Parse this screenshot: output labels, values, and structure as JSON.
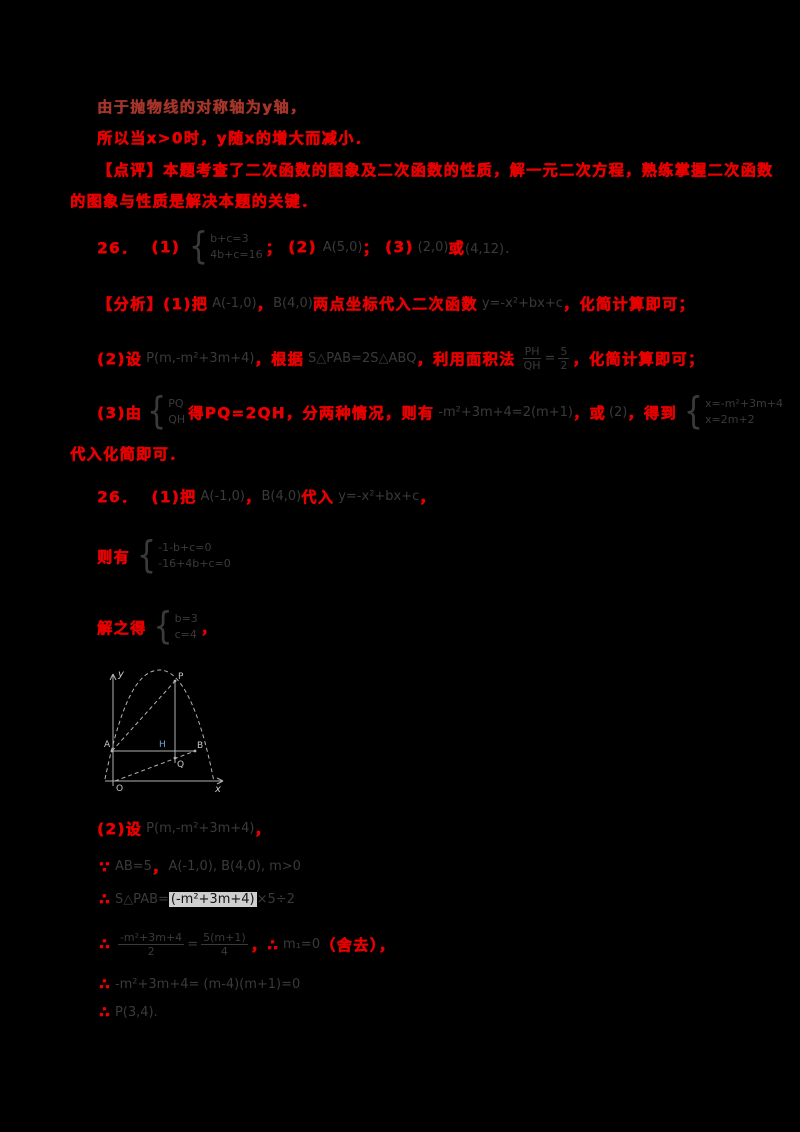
{
  "page": {
    "background": "#000000",
    "accent_red": "#e60000",
    "dark_red": "#a5352a",
    "faint_ink": "#3a3a3a",
    "highlight": "#cfcfcf",
    "figure_stroke": "#b2b2b2",
    "h_label_color": "#6ea3dc"
  },
  "lines": {
    "l1": [
      {
        "t": "由于抛物线的对称轴为y轴，",
        "c": "red2"
      }
    ],
    "l2": [
      {
        "t": "所以当x>0时，y随x的增大而减小．",
        "c": "red"
      }
    ],
    "l3": [
      {
        "t": "【点评】本题考查了二次函数的图象及二次函数的性质，解一元二次方程，熟练掌握二次函数",
        "c": "red"
      }
    ],
    "l4": [
      {
        "t": "的图象与性质是解决本题的关键．",
        "c": "red"
      }
    ],
    "l5": [
      {
        "t": "26．",
        "c": "red"
      },
      {
        "sp": 14
      },
      {
        "t": "(1)",
        "c": "red"
      },
      {
        "sp": 6
      },
      {
        "stack": [
          "b+c=3",
          "4b+c=16"
        ],
        "c": "dark"
      },
      {
        "t": "；",
        "c": "red"
      },
      {
        "sp": 6
      },
      {
        "t": "(2)",
        "c": "red"
      },
      {
        "sp": 6
      },
      {
        "t": "A(5,0)",
        "c": "dark"
      },
      {
        "t": "；",
        "c": "red"
      },
      {
        "sp": 6
      },
      {
        "t": "(3)",
        "c": "red"
      },
      {
        "sp": 4
      },
      {
        "t": "(2,0)",
        "c": "dark"
      },
      {
        "t": "或",
        "c": "red"
      },
      {
        "t": "(4,12)．",
        "c": "dark"
      }
    ],
    "l6": [
      {
        "t": "【分析】(1)把",
        "c": "red"
      },
      {
        "sp": 4
      },
      {
        "t": "A(-1,0)",
        "c": "dark"
      },
      {
        "t": "，",
        "c": "red"
      },
      {
        "t": "B(4,0)",
        "c": "dark"
      },
      {
        "t": "两点坐标代入二次函数",
        "c": "red"
      },
      {
        "sp": 4
      },
      {
        "t": "y=-x²+bx+c",
        "c": "dark"
      },
      {
        "t": "，化简计算即可；",
        "c": "red"
      }
    ],
    "l7": [
      {
        "t": "(2)设",
        "c": "red"
      },
      {
        "sp": 4
      },
      {
        "t": "P(m,-m²+3m+4)",
        "c": "dark"
      },
      {
        "t": "，根据",
        "c": "red"
      },
      {
        "sp": 4
      },
      {
        "t": "S△PAB=2S△ABQ",
        "c": "dark"
      },
      {
        "t": "，利用面积法",
        "c": "red"
      },
      {
        "sp": 4
      },
      {
        "frac": [
          "PH",
          "QH"
        ],
        "c": "dark"
      },
      {
        "t": "=",
        "c": "dark"
      },
      {
        "frac": [
          "5",
          "2"
        ],
        "c": "dark"
      },
      {
        "t": "，化简计算即可；",
        "c": "red"
      }
    ],
    "l8": [
      {
        "t": "(3)由",
        "c": "red"
      },
      {
        "sp": 2
      },
      {
        "stack": [
          "PQ",
          "QH"
        ],
        "c": "dark"
      },
      {
        "t": "得PQ=2QH，分两种情况，则有",
        "c": "red"
      },
      {
        "sp": 4
      },
      {
        "t": "-m²+3m+4=2(m+1)",
        "c": "dark"
      },
      {
        "t": "，或",
        "c": "red"
      },
      {
        "sp": 3
      },
      {
        "t": "(2)",
        "c": "dark"
      },
      {
        "t": "，得到",
        "c": "red"
      },
      {
        "sp": 4
      },
      {
        "stack": [
          "x=-m²+3m+4",
          "x=2m+2"
        ],
        "c": "dark"
      }
    ],
    "l9": [
      {
        "t": "代入化简即可．",
        "c": "red"
      }
    ],
    "l10": [
      {
        "t": "26．",
        "c": "red"
      },
      {
        "sp": 14
      },
      {
        "t": "(1)把",
        "c": "red"
      },
      {
        "sp": 4
      },
      {
        "t": "A(-1,0)",
        "c": "dark"
      },
      {
        "t": "，",
        "c": "red"
      },
      {
        "t": "B(4,0)",
        "c": "dark"
      },
      {
        "t": "代入",
        "c": "red"
      },
      {
        "sp": 4
      },
      {
        "t": "y=-x²+bx+c",
        "c": "dark"
      },
      {
        "t": "，",
        "c": "red"
      }
    ],
    "l11": [
      {
        "t": "则有",
        "c": "red"
      },
      {
        "sp": 4
      },
      {
        "stack": [
          "-1-b+c=0",
          "-16+4b+c=0"
        ],
        "c": "dark"
      }
    ],
    "l12": [
      {
        "t": "解之得",
        "c": "red"
      },
      {
        "sp": 4
      },
      {
        "stack": [
          "b=3",
          "c=4"
        ],
        "c": "dark"
      },
      {
        "t": "，",
        "c": "red"
      }
    ],
    "l14": [
      {
        "t": "(2)设",
        "c": "red"
      },
      {
        "sp": 4
      },
      {
        "t": "P(m,-m²+3m+4)",
        "c": "dark"
      },
      {
        "t": "，",
        "c": "red"
      }
    ],
    "l15": [
      {
        "t": "∵",
        "c": "red"
      },
      {
        "sp": 4
      },
      {
        "t": "AB=5",
        "c": "dark"
      },
      {
        "t": "，",
        "c": "red"
      },
      {
        "t": "A(-1,0), B(4,0), m>0",
        "c": "dark"
      }
    ],
    "l16": [
      {
        "t": "∴",
        "c": "red"
      },
      {
        "sp": 4
      },
      {
        "t": "S△PAB=",
        "c": "dark"
      },
      {
        "t": "(-m²+3m+4)",
        "c": "hl"
      },
      {
        "t": "×5÷2",
        "c": "dark"
      }
    ],
    "l17": [
      {
        "t": "∴",
        "c": "red"
      },
      {
        "sp": 4
      },
      {
        "frac": [
          "-m²+3m+4",
          "2"
        ],
        "c": "dark"
      },
      {
        "t": "=",
        "c": "dark"
      },
      {
        "frac": [
          "5(m+1)",
          "4"
        ],
        "c": "dark"
      },
      {
        "t": "，∴",
        "c": "red"
      },
      {
        "sp": 4
      },
      {
        "t": "m₁=0",
        "c": "dark"
      },
      {
        "t": "（舍去），",
        "c": "red"
      }
    ],
    "l18": [
      {
        "t": "∴",
        "c": "red"
      },
      {
        "sp": 4
      },
      {
        "t": "-m²+3m+4=",
        "c": "dark"
      },
      {
        "t": "  ",
        "c": "hl"
      },
      {
        "t": " (m-4)(m+1)=0",
        "c": "dark"
      }
    ],
    "l19": [
      {
        "t": "∴",
        "c": "red"
      },
      {
        "sp": 4
      },
      {
        "t": "P(3,4).",
        "c": "dark"
      }
    ]
  },
  "figure": {
    "labels": {
      "y_axis": "y",
      "x_axis": "x",
      "origin": "O",
      "a": "A",
      "b": "B",
      "p": "P",
      "q": "Q",
      "h": "H"
    }
  }
}
